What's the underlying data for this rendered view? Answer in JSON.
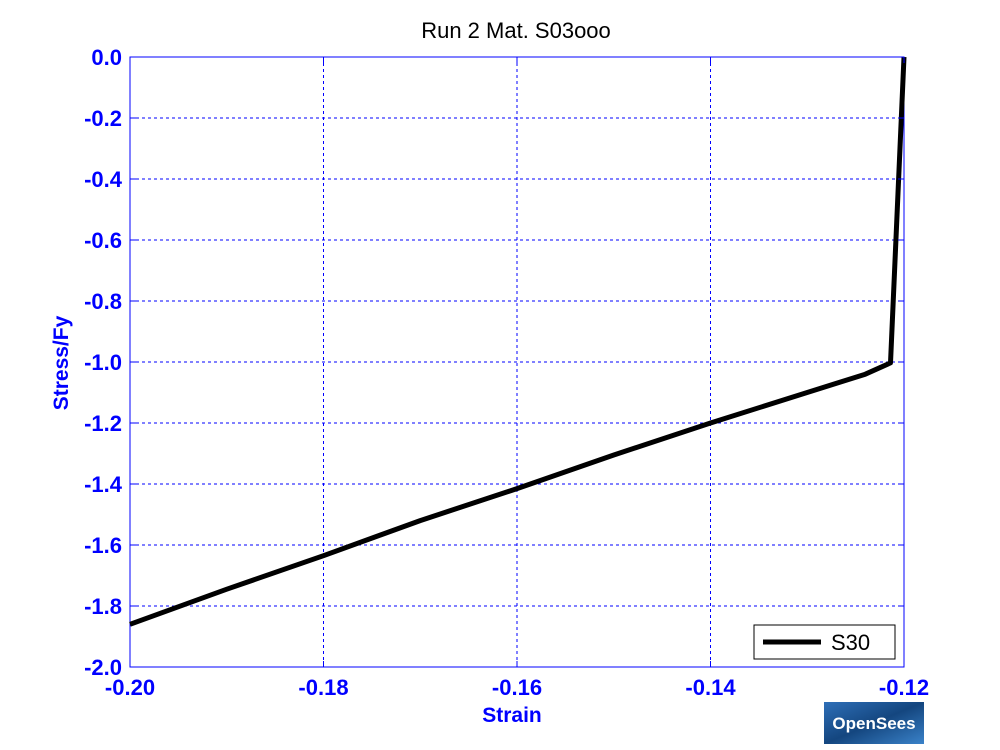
{
  "chart_data": {
    "type": "line",
    "title": "Run 2   Mat. S03ooo",
    "xlabel": "Strain",
    "ylabel": "Stress/Fy",
    "xlim": [
      -0.2,
      -0.12
    ],
    "ylim": [
      -2.0,
      0.0
    ],
    "xticks": [
      -0.2,
      -0.18,
      -0.16,
      -0.14,
      -0.12
    ],
    "xtick_labels": [
      "-0.20",
      "-0.18",
      "-0.16",
      "-0.14",
      "-0.12"
    ],
    "yticks": [
      0.0,
      -0.2,
      -0.4,
      -0.6,
      -0.8,
      -1.0,
      -1.2,
      -1.4,
      -1.6,
      -1.8,
      -2.0
    ],
    "ytick_labels": [
      "0.0",
      "-0.2",
      "-0.4",
      "-0.6",
      "-0.8",
      "-1.0",
      "-1.2",
      "-1.4",
      "-1.6",
      "-1.8",
      "-2.0"
    ],
    "grid": true,
    "legend_position": "bottom-right",
    "series": [
      {
        "name": "S30",
        "color": "#000000",
        "x": [
          -0.12,
          -0.1214,
          -0.124,
          -0.13,
          -0.14,
          -0.15,
          -0.16,
          -0.17,
          -0.18,
          -0.19,
          -0.2
        ],
        "y": [
          0.0,
          -1.003,
          -1.04,
          -1.1,
          -1.2,
          -1.305,
          -1.415,
          -1.52,
          -1.635,
          -1.745,
          -1.86
        ]
      }
    ]
  },
  "watermark": {
    "text": "OpenSees",
    "color": "#1a4d8c"
  }
}
